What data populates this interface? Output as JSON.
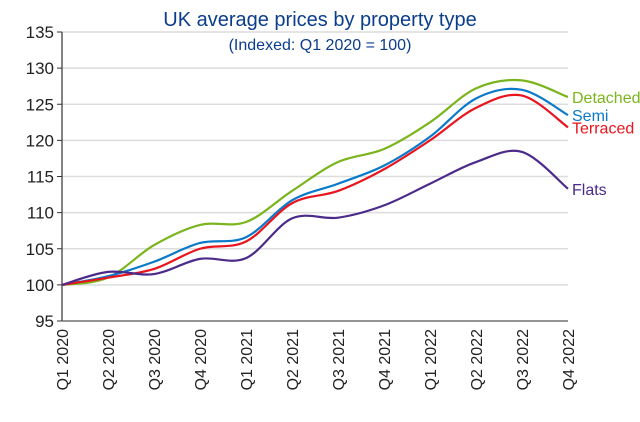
{
  "chart_data": {
    "type": "line",
    "title": "UK average prices by property type",
    "subtitle": "(Indexed: Q1 2020 = 100)",
    "xlabel": "",
    "ylabel": "",
    "categories": [
      "Q1 2020",
      "Q2 2020",
      "Q3 2020",
      "Q4 2020",
      "Q1 2021",
      "Q2 2021",
      "Q3 2021",
      "Q4 2021",
      "Q1 2022",
      "Q2 2022",
      "Q3 2022",
      "Q4 2022"
    ],
    "ylim": [
      95,
      135
    ],
    "yticks": [
      "95",
      "100",
      "105",
      "110",
      "115",
      "120",
      "125",
      "130",
      "135"
    ],
    "grid": true,
    "legend": "inline-right",
    "series": [
      {
        "name": "Detached",
        "color": "#7ab51d",
        "values": [
          100,
          101.0,
          105.5,
          108.3,
          108.7,
          113.0,
          117.0,
          118.8,
          122.5,
          127.2,
          128.3,
          126.0
        ]
      },
      {
        "name": "Semi",
        "color": "#0a79c9",
        "values": [
          100,
          101.2,
          103.2,
          105.8,
          106.6,
          111.7,
          114.0,
          116.5,
          120.5,
          125.8,
          127.0,
          123.5
        ]
      },
      {
        "name": "Terraced",
        "color": "#e8141e",
        "values": [
          100,
          101.0,
          102.2,
          105.0,
          106.0,
          111.3,
          113.0,
          116.0,
          120.0,
          124.5,
          126.2,
          121.8
        ]
      },
      {
        "name": "Flats",
        "color": "#4b2a8a",
        "values": [
          100,
          101.8,
          101.5,
          103.6,
          103.7,
          109.2,
          109.3,
          111.0,
          114.0,
          117.0,
          118.4,
          113.3
        ]
      }
    ],
    "title_color": "#0b3d8c"
  }
}
